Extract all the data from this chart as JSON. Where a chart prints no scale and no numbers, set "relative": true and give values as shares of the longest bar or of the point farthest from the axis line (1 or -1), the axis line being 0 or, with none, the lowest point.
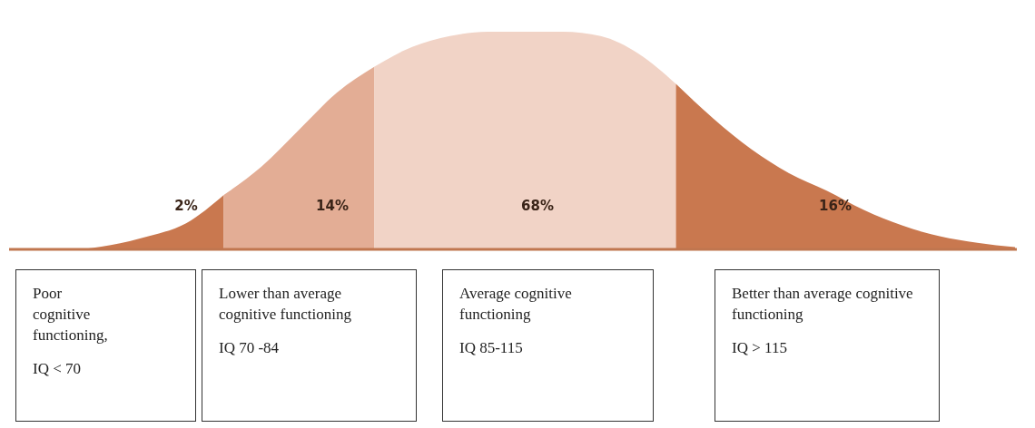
{
  "chart_data": {
    "type": "area",
    "relative": true,
    "categories": [
      null,
      null,
      null,
      null,
      null,
      null,
      null,
      null,
      null,
      null,
      null,
      null,
      null,
      null,
      null,
      null,
      null,
      null,
      null,
      null,
      null,
      null,
      null,
      null,
      null,
      null,
      null
    ],
    "series": [
      {
        "color": "#c9784f",
        "values": [
          0,
          0,
          0.02,
          0.06,
          0.12,
          0.25,
          null,
          null,
          null,
          null,
          null,
          null,
          null,
          null,
          null,
          null,
          null,
          null,
          null,
          null,
          null,
          null,
          null,
          null,
          null,
          null,
          null
        ]
      },
      {
        "color": "#e3ad95",
        "values": [
          null,
          null,
          null,
          null,
          null,
          0.25,
          0.38,
          0.55,
          0.72,
          0.84,
          null,
          null,
          null,
          null,
          null,
          null,
          null,
          null,
          null,
          null,
          null,
          null,
          null,
          null,
          null,
          null,
          null
        ]
      },
      {
        "color": "#f1d3c6",
        "values": [
          null,
          null,
          null,
          null,
          null,
          null,
          null,
          null,
          null,
          0.84,
          0.93,
          0.98,
          1,
          1,
          1,
          0.98,
          0.9,
          0.76,
          null,
          null,
          null,
          null,
          null,
          null,
          null,
          null,
          null
        ]
      },
      {
        "color": "#c9784f",
        "values": [
          null,
          null,
          null,
          null,
          null,
          null,
          null,
          null,
          null,
          null,
          null,
          null,
          null,
          null,
          null,
          null,
          null,
          0.76,
          0.6,
          0.46,
          0.35,
          0.27,
          0.18,
          0.11,
          0.06,
          0.03,
          0.01
        ]
      }
    ],
    "annotations": [
      "2%",
      "14%",
      "68%",
      "16%",
      "Poor cognitive functioning,",
      "IQ < 70",
      "Lower than average cognitive functioning",
      "IQ 70 -84",
      "Average cognitive functioning",
      "IQ 85-115",
      "Better than average cognitive functioning",
      "IQ > 115"
    ]
  }
}
